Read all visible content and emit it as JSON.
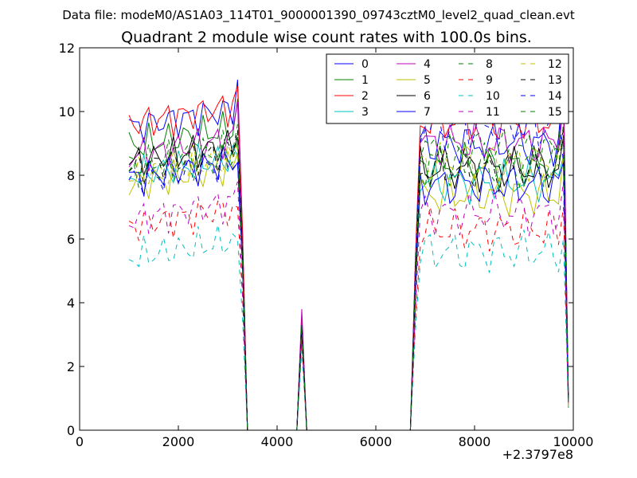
{
  "chart_data": {
    "type": "line",
    "supertitle": "Data file: modeM0/AS1A03_114T01_9000001390_09743cztM0_level2_quad_clean.evt",
    "title": "Quadrant 2 module wise count rates with 100.0s bins.",
    "xlabel": "",
    "ylabel": "",
    "x_offset_label": "+2.3797e8",
    "xlim": [
      0,
      10000
    ],
    "ylim": [
      0,
      12
    ],
    "xticks": [
      0,
      2000,
      4000,
      6000,
      8000,
      10000
    ],
    "yticks": [
      0,
      2,
      4,
      6,
      8,
      10,
      12
    ],
    "grid": false,
    "legend": {
      "location": "top-right",
      "columns": 4
    },
    "x": [
      1000,
      1100,
      1200,
      1300,
      1400,
      1500,
      1600,
      1700,
      1800,
      1900,
      2000,
      2100,
      2200,
      2300,
      2400,
      2500,
      2600,
      2700,
      2800,
      2900,
      3000,
      3100,
      3200,
      3300,
      3400,
      3500,
      3600,
      3700,
      3800,
      3900,
      4000,
      4100,
      4200,
      4300,
      4400,
      4500,
      4600,
      4700,
      4800,
      4900,
      5000,
      5100,
      5200,
      5300,
      5400,
      5500,
      5600,
      5700,
      5800,
      5900,
      6000,
      6100,
      6200,
      6300,
      6400,
      6500,
      6600,
      6700,
      6800,
      6900,
      7000,
      7100,
      7200,
      7300,
      7400,
      7500,
      7600,
      7700,
      7800,
      7900,
      8000,
      8100,
      8200,
      8300,
      8400,
      8500,
      8600,
      8700,
      8800,
      8900,
      9000,
      9100,
      9200,
      9300,
      9400,
      9500,
      9600,
      9700,
      9800,
      9900
    ],
    "series": [
      {
        "name": "0",
        "color": "#0000ff",
        "dash": "solid",
        "pre": 9.5,
        "post": 9.0,
        "peak": 3.5,
        "edge": 11.0,
        "end": 1.0
      },
      {
        "name": "1",
        "color": "#008000",
        "dash": "solid",
        "pre": 8.9,
        "post": 8.3,
        "peak": 3.4,
        "edge": 10.4,
        "end": 1.0
      },
      {
        "name": "2",
        "color": "#ff0000",
        "dash": "solid",
        "pre": 9.6,
        "post": 9.7,
        "peak": 3.5,
        "edge": 10.8,
        "end": 1.0
      },
      {
        "name": "3",
        "color": "#00bfbf",
        "dash": "solid",
        "pre": 8.0,
        "post": 7.8,
        "peak": 3.2,
        "edge": 8.6,
        "end": 0.9
      },
      {
        "name": "4",
        "color": "#bf00bf",
        "dash": "solid",
        "pre": 8.6,
        "post": 9.0,
        "peak": 3.8,
        "edge": 10.3,
        "end": 1.0
      },
      {
        "name": "5",
        "color": "#bfbf00",
        "dash": "solid",
        "pre": 7.7,
        "post": 7.4,
        "peak": 3.0,
        "edge": 8.7,
        "end": 0.7
      },
      {
        "name": "6",
        "color": "#000000",
        "dash": "solid",
        "pre": 8.4,
        "post": 8.2,
        "peak": 3.3,
        "edge": 9.2,
        "end": 1.0
      },
      {
        "name": "7",
        "color": "#0000ff",
        "dash": "solid",
        "pre": 7.9,
        "post": 7.7,
        "peak": 3.2,
        "edge": 8.4,
        "end": 0.9
      },
      {
        "name": "8",
        "color": "#008000",
        "dash": "dashed",
        "pre": 8.3,
        "post": 8.3,
        "peak": 3.3,
        "edge": 9.6,
        "end": 1.0
      },
      {
        "name": "9",
        "color": "#ff0000",
        "dash": "dashed",
        "pre": 6.4,
        "post": 6.3,
        "peak": 2.8,
        "edge": 7.0,
        "end": 0.8
      },
      {
        "name": "10",
        "color": "#00bfbf",
        "dash": "dashed",
        "pre": 5.4,
        "post": 5.6,
        "peak": 2.5,
        "edge": 6.0,
        "end": 0.7
      },
      {
        "name": "11",
        "color": "#bf00bf",
        "dash": "dashed",
        "pre": 6.6,
        "post": 6.8,
        "peak": 2.9,
        "edge": 7.8,
        "end": 0.8
      },
      {
        "name": "12",
        "color": "#bfbf00",
        "dash": "dashed",
        "pre": 8.0,
        "post": 8.4,
        "peak": 3.3,
        "edge": 9.0,
        "end": 0.8
      },
      {
        "name": "13",
        "color": "#000000",
        "dash": "dashed",
        "pre": 8.2,
        "post": 8.2,
        "peak": 3.3,
        "edge": 9.4,
        "end": 0.9
      },
      {
        "name": "14",
        "color": "#0000ff",
        "dash": "dashed",
        "pre": 7.8,
        "post": 9.5,
        "peak": 3.3,
        "edge": 8.4,
        "end": 0.9
      },
      {
        "name": "15",
        "color": "#008000",
        "dash": "dashed",
        "pre": 8.0,
        "post": 8.8,
        "peak": 3.3,
        "edge": 9.2,
        "end": 0.9
      }
    ]
  }
}
